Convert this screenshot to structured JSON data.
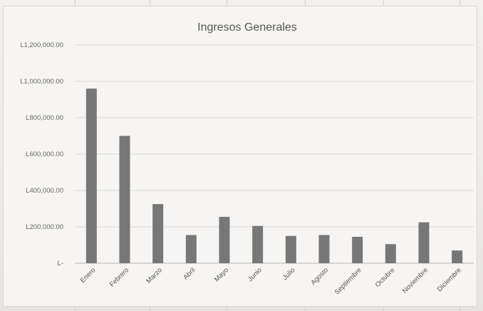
{
  "chart_data": {
    "type": "bar",
    "title": "Ingresos Generales",
    "xlabel": "",
    "ylabel": "",
    "categories": [
      "Enero",
      "Febrero",
      "Marzo",
      "Abril",
      "Mayo",
      "Junio",
      "Julio",
      "Agosto",
      "Septiembre",
      "Octubre",
      "Noviembre",
      "Diciembre"
    ],
    "values": [
      960000,
      700000,
      325000,
      155000,
      255000,
      205000,
      150000,
      155000,
      145000,
      105000,
      225000,
      70000
    ],
    "ylim": [
      0,
      1200000
    ],
    "yticks": [
      0,
      200000,
      400000,
      600000,
      800000,
      1000000,
      1200000
    ],
    "ytick_labels": [
      "L-",
      "L200,000.00",
      "L400,000.00",
      "L600,000.00",
      "L800,000.00",
      "L1,000,000.00",
      "L1,200,000.00"
    ],
    "grid": true,
    "legend": "none",
    "bar_color": "#777777"
  }
}
